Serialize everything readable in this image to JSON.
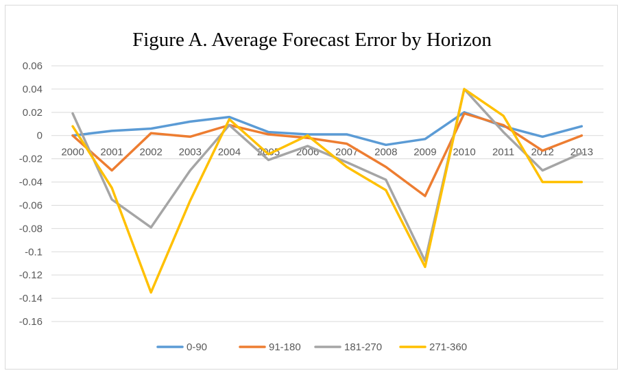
{
  "chart_data": {
    "type": "line",
    "title": "Figure A. Average Forecast Error by Horizon",
    "xlabel": "",
    "ylabel": "",
    "categories": [
      "2000",
      "2001",
      "2002",
      "2003",
      "2004",
      "2005",
      "2006",
      "2007",
      "2008",
      "2009",
      "2010",
      "2011",
      "2012",
      "2013"
    ],
    "ylim": [
      -0.16,
      0.06
    ],
    "yticks": [
      0.06,
      0.04,
      0.02,
      0,
      -0.02,
      -0.04,
      -0.06,
      -0.08,
      -0.1,
      -0.12,
      -0.14,
      -0.16
    ],
    "ytick_labels": [
      "0.06",
      "0.04",
      "0.02",
      "0",
      "-0.02",
      "-0.04",
      "-0.06",
      "-0.08",
      "-0.1",
      "-0.12",
      "-0.14",
      "-0.16"
    ],
    "grid": true,
    "legend_position": "bottom",
    "series": [
      {
        "name": "0-90",
        "color": "#5B9BD5",
        "values": [
          0.0,
          0.004,
          0.006,
          0.012,
          0.016,
          0.003,
          0.001,
          0.001,
          -0.008,
          -0.003,
          0.02,
          0.008,
          -0.001,
          0.008
        ]
      },
      {
        "name": "91-180",
        "color": "#ED7D31",
        "values": [
          0.0,
          -0.03,
          0.002,
          -0.001,
          0.009,
          0.001,
          -0.002,
          -0.007,
          -0.027,
          -0.052,
          0.019,
          0.009,
          -0.013,
          0.0
        ]
      },
      {
        "name": "181-270",
        "color": "#A5A5A5",
        "values": [
          0.019,
          -0.055,
          -0.079,
          -0.03,
          0.009,
          -0.021,
          -0.009,
          -0.023,
          -0.038,
          -0.108,
          0.04,
          0.003,
          -0.03,
          -0.015
        ]
      },
      {
        "name": "271-360",
        "color": "#FFC000",
        "values": [
          0.008,
          -0.045,
          -0.135,
          -0.056,
          0.014,
          -0.016,
          0.0,
          -0.027,
          -0.047,
          -0.113,
          0.04,
          0.017,
          -0.04,
          -0.04
        ]
      }
    ]
  }
}
